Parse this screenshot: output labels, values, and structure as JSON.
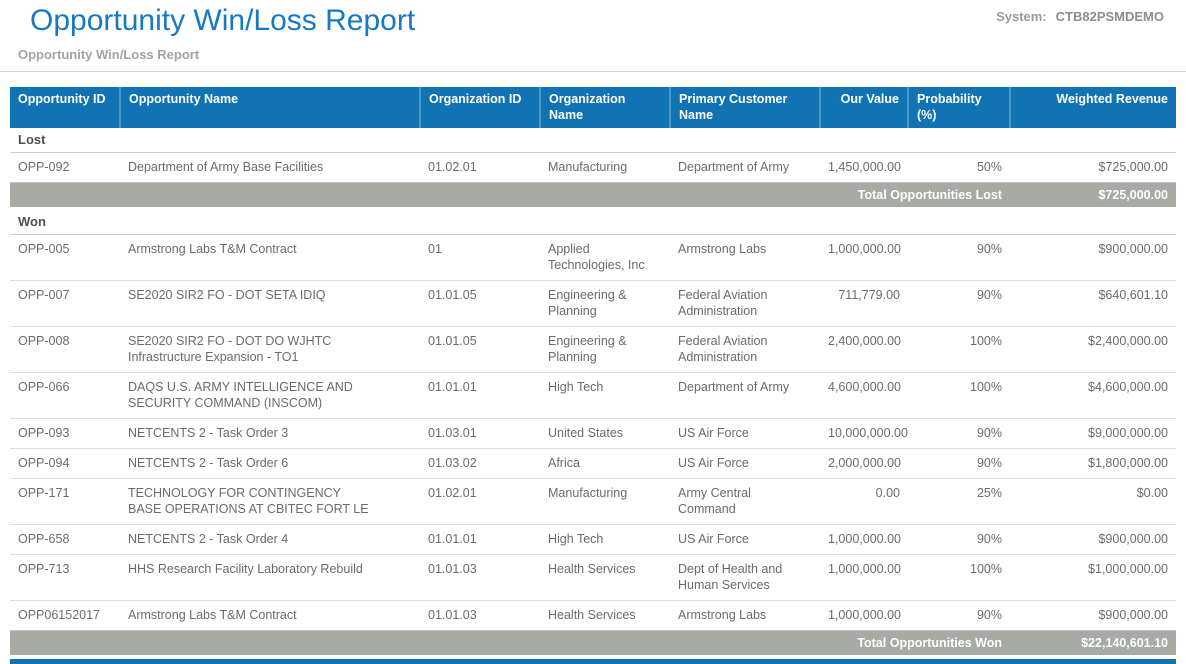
{
  "page": {
    "title": "Opportunity Win/Loss Report",
    "subtitle": "Opportunity Win/Loss Report",
    "system_label": "System:",
    "system_value": "CTB82PSMDEMO"
  },
  "colors": {
    "title_blue": "#1778c4",
    "header_blue": "#1173b3",
    "header_sep": "#4a96c8",
    "total_gray": "#a6aba4",
    "body_text": "#6b6b6b",
    "section_text": "#4f4f4f",
    "muted_gray": "#a3a3a3"
  },
  "table": {
    "columns": [
      {
        "key": "id",
        "label": "Opportunity ID",
        "align": "left"
      },
      {
        "key": "name",
        "label": "Opportunity Name",
        "align": "left"
      },
      {
        "key": "org_id",
        "label": "Organization ID",
        "align": "left"
      },
      {
        "key": "org_name",
        "label": "Organization Name",
        "align": "left"
      },
      {
        "key": "customer",
        "label": "Primary Customer Name",
        "align": "left"
      },
      {
        "key": "our_value",
        "label": "Our Value",
        "align": "right"
      },
      {
        "key": "probability",
        "label": "Probability (%)",
        "align": "right"
      },
      {
        "key": "weighted",
        "label": "Weighted Revenue",
        "align": "right"
      }
    ],
    "sections": [
      {
        "name": "Lost",
        "rows": [
          {
            "id": "OPP-092",
            "name": "Department of Army Base Facilities",
            "org_id": "01.02.01",
            "org_name": "Manufacturing",
            "customer": "Department of Army",
            "our_value": "1,450,000.00",
            "probability": "50%",
            "weighted": "$725,000.00"
          }
        ],
        "total_label": "Total Opportunities Lost",
        "total_value": "$725,000.00"
      },
      {
        "name": "Won",
        "rows": [
          {
            "id": "OPP-005",
            "name": "Armstrong Labs T&M Contract",
            "org_id": "01",
            "org_name": "Applied Technologies, Inc",
            "customer": "Armstrong Labs",
            "our_value": "1,000,000.00",
            "probability": "90%",
            "weighted": "$900,000.00"
          },
          {
            "id": "OPP-007",
            "name": "SE2020 SIR2 FO - DOT SETA IDIQ",
            "org_id": "01.01.05",
            "org_name": "Engineering & Planning",
            "customer": "Federal Aviation Administration",
            "our_value": "711,779.00",
            "probability": "90%",
            "weighted": "$640,601.10"
          },
          {
            "id": "OPP-008",
            "name": "SE2020 SIR2 FO - DOT DO WJHTC Infrastructure Expansion - TO1",
            "org_id": "01.01.05",
            "org_name": "Engineering & Planning",
            "customer": "Federal Aviation Administration",
            "our_value": "2,400,000.00",
            "probability": "100%",
            "weighted": "$2,400,000.00"
          },
          {
            "id": "OPP-066",
            "name": "DAQS U.S. ARMY INTELLIGENCE AND SECURITY COMMAND (INSCOM)",
            "org_id": "01.01.01",
            "org_name": "High Tech",
            "customer": "Department of Army",
            "our_value": "4,600,000.00",
            "probability": "100%",
            "weighted": "$4,600,000.00"
          },
          {
            "id": "OPP-093",
            "name": "NETCENTS 2 - Task Order 3",
            "org_id": "01.03.01",
            "org_name": "United States",
            "customer": "US Air Force",
            "our_value": "10,000,000.00",
            "probability": "90%",
            "weighted": "$9,000,000.00"
          },
          {
            "id": "OPP-094",
            "name": "NETCENTS 2 - Task Order 6",
            "org_id": "01.03.02",
            "org_name": "Africa",
            "customer": "US Air Force",
            "our_value": "2,000,000.00",
            "probability": "90%",
            "weighted": "$1,800,000.00"
          },
          {
            "id": "OPP-171",
            "name": "TECHNOLOGY FOR CONTINGENCY BASE OPERATIONS AT CBITEC FORT LE",
            "org_id": "01.02.01",
            "org_name": "Manufacturing",
            "customer": "Army Central Command",
            "our_value": "0.00",
            "probability": "25%",
            "weighted": "$0.00"
          },
          {
            "id": "OPP-658",
            "name": "NETCENTS 2 - Task Order 4",
            "org_id": "01.01.01",
            "org_name": "High Tech",
            "customer": "US Air Force",
            "our_value": "1,000,000.00",
            "probability": "90%",
            "weighted": "$900,000.00"
          },
          {
            "id": "OPP-713",
            "name": "HHS Research Facility Laboratory Rebuild",
            "org_id": "01.01.03",
            "org_name": "Health Services",
            "customer": "Dept of Health and Human Services",
            "our_value": "1,000,000.00",
            "probability": "100%",
            "weighted": "$1,000,000.00"
          },
          {
            "id": "OPP06152017",
            "name": "Armstrong Labs T&M Contract",
            "org_id": "01.01.03",
            "org_name": "Health Services",
            "customer": "Armstrong Labs",
            "our_value": "1,000,000.00",
            "probability": "90%",
            "weighted": "$900,000.00"
          }
        ],
        "total_label": "Total Opportunities Won",
        "total_value": "$22,140,601.10"
      }
    ]
  }
}
